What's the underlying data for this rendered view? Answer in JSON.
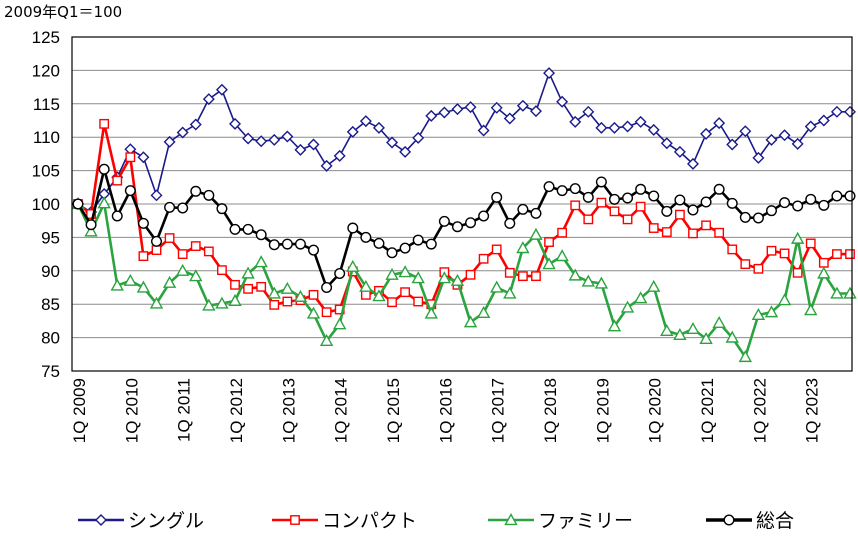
{
  "chart_data": {
    "type": "line",
    "unit_label": "2009年Q1＝100",
    "ylim": [
      75,
      125
    ],
    "yticks": [
      75,
      80,
      85,
      90,
      95,
      100,
      105,
      110,
      115,
      120,
      125
    ],
    "xticks": [
      "1Q 2009",
      "1Q 2010",
      "1Q 2011",
      "1Q 2012",
      "1Q 2013",
      "1Q 2014",
      "1Q 2015",
      "1Q 2016",
      "1Q 2017",
      "1Q 2018",
      "1Q 2019",
      "1Q 2020",
      "1Q 2021",
      "1Q 2022",
      "1Q 2023"
    ],
    "grid": true,
    "legend_position": "bottom",
    "x": [
      "2009Q1",
      "2009Q2",
      "2009Q3",
      "2009Q4",
      "2010Q1",
      "2010Q2",
      "2010Q3",
      "2010Q4",
      "2011Q1",
      "2011Q2",
      "2011Q3",
      "2011Q4",
      "2012Q1",
      "2012Q2",
      "2012Q3",
      "2012Q4",
      "2013Q1",
      "2013Q2",
      "2013Q3",
      "2013Q4",
      "2014Q1",
      "2014Q2",
      "2014Q3",
      "2014Q4",
      "2015Q1",
      "2015Q2",
      "2015Q3",
      "2015Q4",
      "2016Q1",
      "2016Q2",
      "2016Q3",
      "2016Q4",
      "2017Q1",
      "2017Q2",
      "2017Q3",
      "2017Q4",
      "2018Q1",
      "2018Q2",
      "2018Q3",
      "2018Q4",
      "2019Q1",
      "2019Q2",
      "2019Q3",
      "2019Q4",
      "2020Q1",
      "2020Q2",
      "2020Q3",
      "2020Q4",
      "2021Q1",
      "2021Q2",
      "2021Q3",
      "2021Q4",
      "2022Q1",
      "2022Q2",
      "2022Q3",
      "2022Q4",
      "2023Q1",
      "2023Q2",
      "2023Q3",
      "2023Q4"
    ],
    "series": [
      {
        "name": "シングル",
        "color": "#1a1a8c",
        "marker": "diamond",
        "values": [
          100,
          98.8,
          101.5,
          104.0,
          108.2,
          107.0,
          101.3,
          109.3,
          110.7,
          111.9,
          115.7,
          117.1,
          112.0,
          109.8,
          109.4,
          109.6,
          110.1,
          108.1,
          108.9,
          105.7,
          107.2,
          110.8,
          112.4,
          111.4,
          109.2,
          107.8,
          109.9,
          113.2,
          113.7,
          114.2,
          114.5,
          111.0,
          114.4,
          112.8,
          114.7,
          113.9,
          119.6,
          115.3,
          112.3,
          113.8,
          111.4,
          111.4,
          111.6,
          112.3,
          111.1,
          109.1,
          107.8,
          106.0,
          110.5,
          112.1,
          108.9,
          110.9,
          106.9,
          109.6,
          110.3,
          109.0,
          111.6,
          112.5,
          113.8,
          113.8
        ]
      },
      {
        "name": "コンパクト",
        "color": "#ff0000",
        "marker": "square",
        "values": [
          100,
          98.5,
          112.0,
          103.5,
          107.0,
          92.2,
          93.1,
          94.9,
          92.5,
          93.7,
          92.9,
          90.1,
          87.9,
          87.3,
          87.6,
          84.9,
          85.4,
          85.6,
          86.4,
          83.8,
          84.2,
          89.9,
          86.4,
          87.0,
          85.3,
          86.8,
          85.4,
          85.0,
          89.8,
          87.9,
          89.4,
          91.8,
          93.2,
          89.7,
          89.2,
          89.2,
          94.3,
          95.7,
          99.8,
          97.7,
          100.2,
          98.9,
          97.7,
          99.6,
          96.4,
          95.8,
          98.4,
          95.6,
          96.8,
          95.7,
          93.2,
          91.0,
          90.3,
          93.0,
          92.6,
          89.7,
          94.1,
          91.2,
          92.5,
          92.5
        ]
      },
      {
        "name": "ファミリー",
        "color": "#2ba33f",
        "marker": "triangle",
        "values": [
          100,
          95.9,
          100.1,
          87.8,
          88.5,
          87.5,
          85.1,
          88.2,
          90.0,
          89.2,
          84.8,
          85.1,
          85.5,
          89.6,
          91.3,
          86.6,
          87.3,
          86.1,
          83.6,
          79.5,
          82.0,
          90.6,
          87.6,
          86.2,
          89.4,
          89.8,
          88.9,
          83.6,
          88.9,
          88.5,
          82.3,
          83.7,
          87.5,
          86.6,
          93.4,
          95.4,
          91.0,
          92.2,
          89.3,
          88.4,
          88.1,
          81.7,
          84.5,
          85.9,
          87.6,
          81.0,
          80.4,
          81.3,
          79.8,
          82.2,
          80.0,
          77.1,
          83.4,
          83.8,
          85.6,
          94.8,
          84.1,
          89.6,
          86.6,
          86.6
        ]
      },
      {
        "name": "総合",
        "color": "#000000",
        "marker": "circle",
        "values": [
          100,
          96.9,
          105.2,
          98.2,
          102.0,
          97.1,
          94.4,
          99.5,
          99.4,
          101.9,
          101.3,
          99.3,
          96.2,
          96.2,
          95.4,
          93.9,
          94.0,
          94.0,
          93.1,
          87.5,
          89.6,
          96.4,
          95.0,
          94.1,
          92.7,
          93.4,
          94.6,
          94.0,
          97.4,
          96.6,
          97.2,
          98.2,
          101.0,
          97.1,
          99.2,
          98.6,
          102.6,
          102.0,
          102.3,
          101.0,
          103.3,
          100.7,
          100.9,
          102.2,
          101.2,
          98.9,
          100.6,
          99.1,
          100.3,
          102.2,
          100.1,
          98.0,
          97.9,
          99.0,
          100.2,
          99.7,
          100.7,
          99.8,
          101.2,
          101.2
        ]
      }
    ]
  }
}
